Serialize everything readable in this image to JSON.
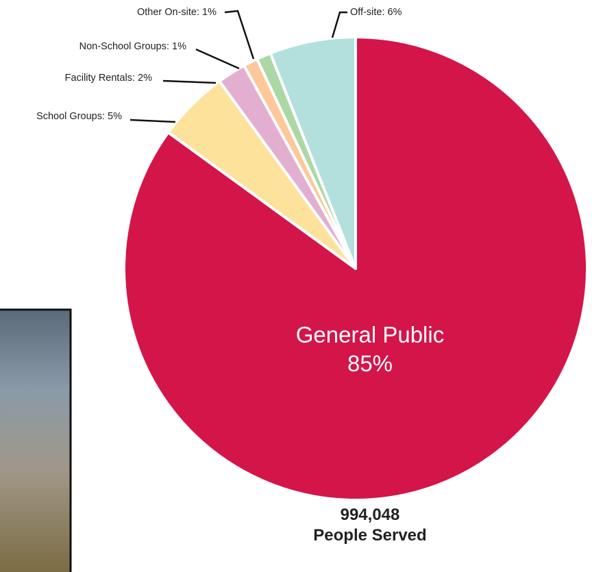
{
  "chart_data": {
    "type": "pie",
    "values": [
      85,
      5,
      2,
      1,
      1,
      6
    ],
    "value_labels": [
      "General Public\n85%",
      "School Groups: 5%",
      "Facility Rentals: 2%",
      "Non-School Groups: 1%",
      "Other On-site: 1%",
      "Off-site: 6%"
    ],
    "colors": [
      "#d4154a",
      "#fde29c",
      "#e3afd0",
      "#fdc89a",
      "#acd8a6",
      "#b3e0dc"
    ],
    "annotations": [
      "994,048",
      "People Served"
    ]
  }
}
